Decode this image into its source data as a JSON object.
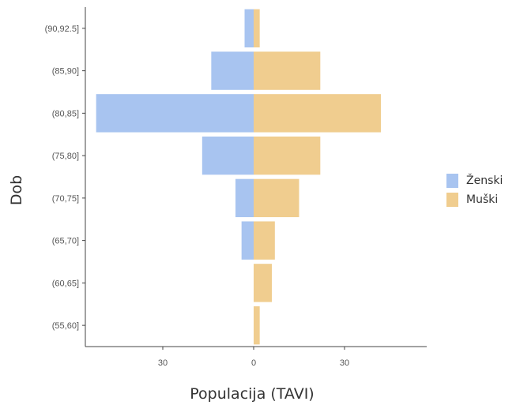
{
  "chart_data": {
    "type": "bar",
    "orientation": "horizontal-population-pyramid",
    "xlabel": "Populacija (TAVI)",
    "ylabel": "Dob",
    "x_ticks": [
      -30,
      0,
      30
    ],
    "x_tick_labels": [
      "30",
      "0",
      "30"
    ],
    "xlim": [
      -52,
      58
    ],
    "categories": [
      "(55,60]",
      "(60,65]",
      "(65,70]",
      "(70,75]",
      "(75,80]",
      "(80,85]",
      "(85,90]",
      "(90,92.5]"
    ],
    "series": [
      {
        "name": "Ženski",
        "color": "#a8c4f0",
        "values": [
          0,
          0,
          4,
          6,
          17,
          52,
          14,
          3
        ]
      },
      {
        "name": "Muški",
        "color": "#f0cd8f",
        "values": [
          2,
          6,
          7,
          15,
          22,
          42,
          22,
          2
        ]
      }
    ],
    "legend": {
      "position": "right",
      "entries": [
        "Ženski",
        "Muški"
      ]
    },
    "grid": false
  }
}
